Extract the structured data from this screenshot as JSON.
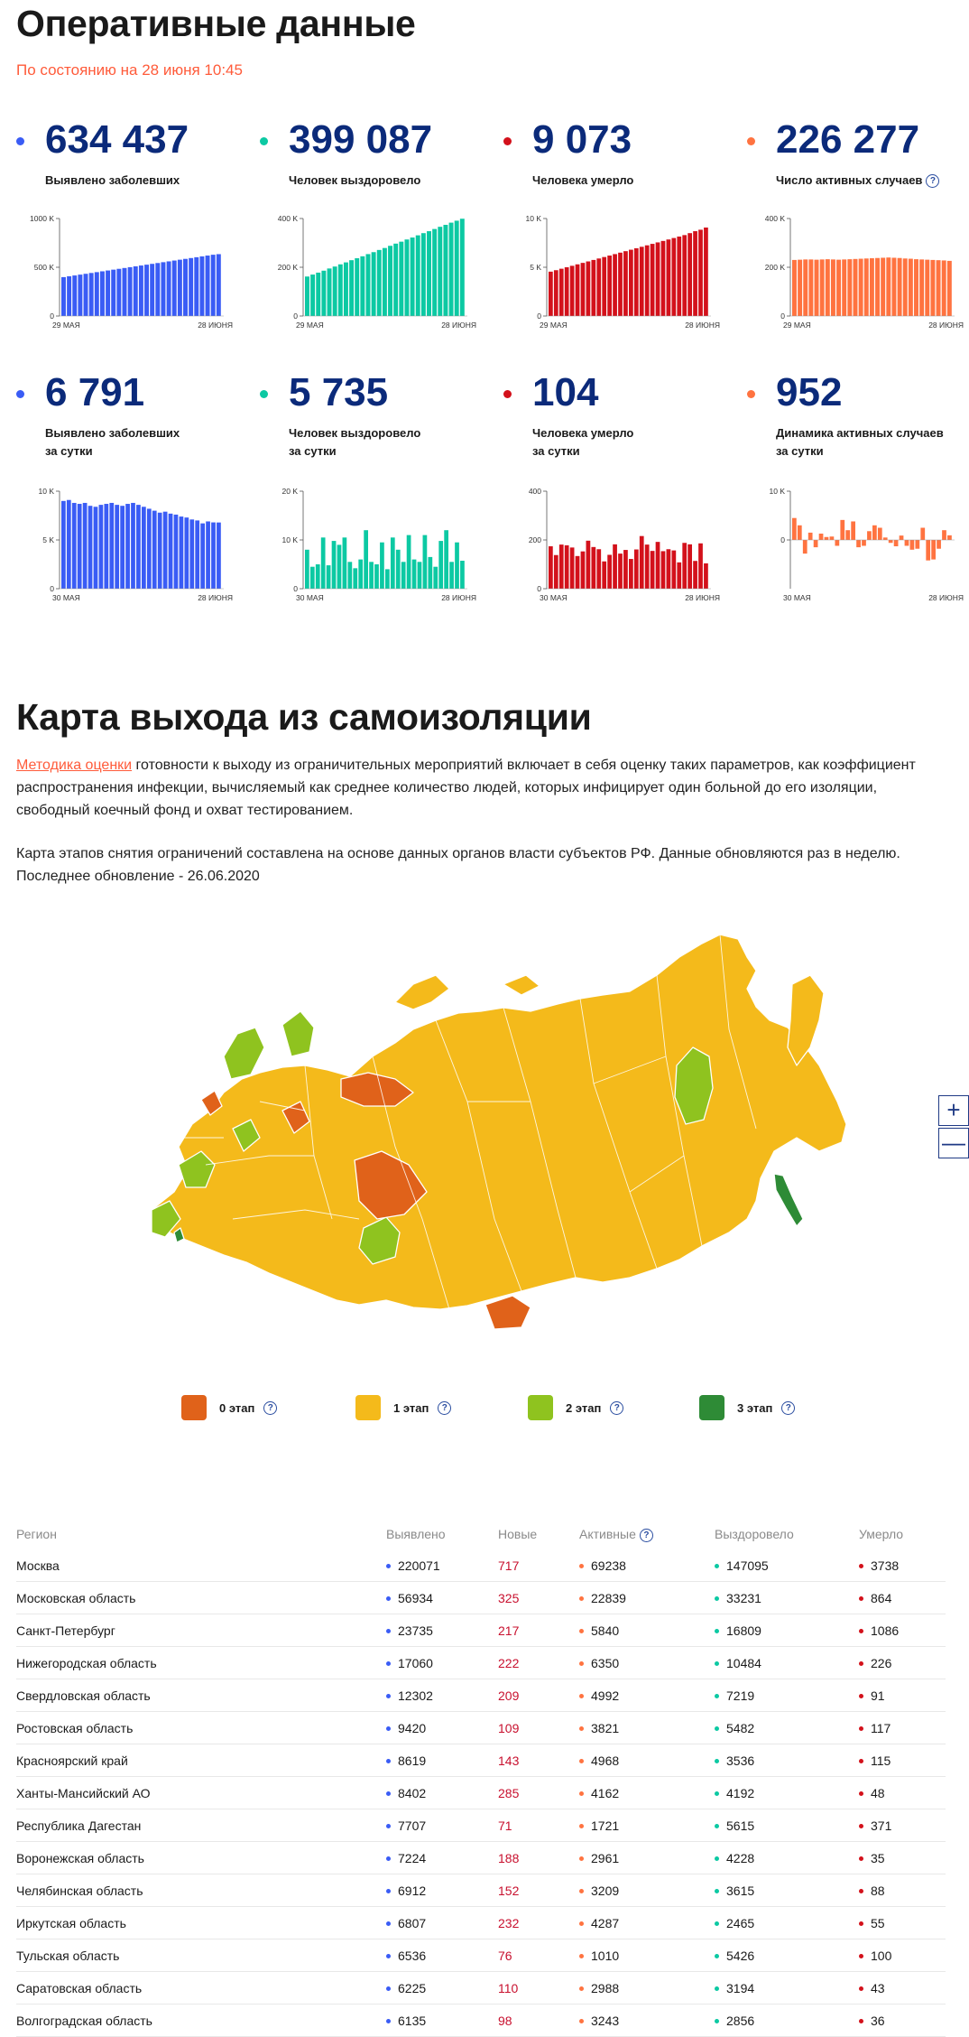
{
  "section1": {
    "title": "Оперативные данные",
    "as_of": "По состоянию на 28 июня 10:45"
  },
  "colors": {
    "blue": "#3a5cf5",
    "teal": "#0cc9a3",
    "red": "#d3111b",
    "orange": "#ff7340"
  },
  "stats_total": [
    {
      "value": "634 437",
      "label": "Выявлено заболевших",
      "color": "#3a5cf5"
    },
    {
      "value": "399 087",
      "label": "Человек выздоровело",
      "color": "#0cc9a3"
    },
    {
      "value": "9 073",
      "label": "Человека умерло",
      "color": "#d3111b"
    },
    {
      "value": "226 277",
      "label": "Число активных случаев",
      "color": "#ff7340",
      "help_icon": "question-icon"
    }
  ],
  "stats_daily": [
    {
      "value": "6 791",
      "label_line1": "Выявлено заболевших",
      "label_line2": "за сутки",
      "color": "#3a5cf5"
    },
    {
      "value": "5 735",
      "label_line1": "Человек выздоровело",
      "label_line2": "за сутки",
      "color": "#0cc9a3"
    },
    {
      "value": "104",
      "label_line1": "Человека умерло",
      "label_line2": "за сутки",
      "color": "#d3111b"
    },
    {
      "value": "952",
      "label_line1": "Динамика активных случаев",
      "label_line2": "за сутки",
      "color": "#ff7340"
    }
  ],
  "chart_data": [
    {
      "type": "bar",
      "color": "#3a5cf5",
      "ylim": [
        0,
        1000000
      ],
      "yticks": [
        "1000 K",
        "500 K",
        "0"
      ],
      "ytick_values": [
        1000000,
        500000,
        0
      ],
      "xticks": [
        "29 МАЯ",
        "28 ИЮНЯ"
      ],
      "values": [
        399000,
        407500,
        416000,
        424500,
        433000,
        441500,
        450000,
        458500,
        467000,
        475500,
        484000,
        492500,
        501000,
        509500,
        518000,
        526500,
        535000,
        543500,
        552000,
        560500,
        569000,
        577500,
        586000,
        594500,
        603000,
        611500,
        620000,
        628500,
        634437
      ]
    },
    {
      "type": "bar",
      "color": "#0cc9a3",
      "ylim": [
        0,
        400000
      ],
      "yticks": [
        "400 K",
        "200 K",
        "0"
      ],
      "ytick_values": [
        400000,
        200000,
        0
      ],
      "xticks": [
        "29 МАЯ",
        "28 ИЮНЯ"
      ],
      "values": [
        162000,
        170000,
        178000,
        186000,
        195000,
        203000,
        212000,
        220000,
        229000,
        237000,
        245000,
        254000,
        262000,
        271000,
        279000,
        288000,
        297000,
        305000,
        314000,
        322000,
        331000,
        340000,
        348000,
        357000,
        366000,
        374000,
        383000,
        391000,
        399087
      ]
    },
    {
      "type": "bar",
      "color": "#d3111b",
      "ylim": [
        0,
        10000
      ],
      "yticks": [
        "10 K",
        "5 K",
        "0"
      ],
      "ytick_values": [
        10000,
        5000,
        0
      ],
      "xticks": [
        "29 МАЯ",
        "28 ИЮНЯ"
      ],
      "values": [
        4550,
        4700,
        4850,
        5000,
        5150,
        5300,
        5450,
        5600,
        5750,
        5900,
        6050,
        6200,
        6350,
        6500,
        6650,
        6800,
        6950,
        7100,
        7250,
        7400,
        7550,
        7700,
        7850,
        8000,
        8150,
        8300,
        8500,
        8700,
        8850,
        9073
      ]
    },
    {
      "type": "bar",
      "color": "#ff7340",
      "ylim": [
        0,
        400000
      ],
      "yticks": [
        "400 K",
        "200 K",
        "0"
      ],
      "ytick_values": [
        400000,
        200000,
        0
      ],
      "xticks": [
        "29 МАЯ",
        "28 ИЮНЯ"
      ],
      "values": [
        230000,
        231000,
        232000,
        232000,
        231000,
        232000,
        233000,
        232000,
        231000,
        232000,
        233000,
        234000,
        235000,
        236000,
        237000,
        238000,
        239000,
        240000,
        239000,
        238000,
        236000,
        235000,
        233000,
        232000,
        231000,
        230000,
        229000,
        228000,
        226277
      ]
    },
    {
      "type": "bar",
      "color": "#3a5cf5",
      "ylim": [
        0,
        10000
      ],
      "yticks": [
        "10 K",
        "5 K",
        "0"
      ],
      "ytick_values": [
        10000,
        5000,
        0
      ],
      "xticks": [
        "30 МАЯ",
        "28 ИЮНЯ"
      ],
      "values": [
        9000,
        9100,
        8800,
        8700,
        8800,
        8500,
        8400,
        8600,
        8700,
        8800,
        8600,
        8500,
        8700,
        8800,
        8600,
        8400,
        8200,
        8000,
        7800,
        7900,
        7700,
        7600,
        7400,
        7300,
        7100,
        7000,
        6700,
        6900,
        6800,
        6791
      ]
    },
    {
      "type": "bar",
      "color": "#0cc9a3",
      "ylim": [
        0,
        20000
      ],
      "yticks": [
        "20 K",
        "10 K",
        "0"
      ],
      "ytick_values": [
        20000,
        10000,
        0
      ],
      "xticks": [
        "30 МАЯ",
        "28 ИЮНЯ"
      ],
      "values": [
        8000,
        4500,
        5000,
        10500,
        4800,
        9800,
        9000,
        10500,
        5500,
        4200,
        6000,
        12000,
        5500,
        5000,
        9500,
        4000,
        10500,
        8000,
        5500,
        11000,
        6000,
        5500,
        11000,
        6500,
        4500,
        9800,
        12000,
        5500,
        9500,
        5735
      ]
    },
    {
      "type": "bar",
      "color": "#d3111b",
      "ylim": [
        0,
        400
      ],
      "yticks": [
        "400",
        "200",
        "0"
      ],
      "ytick_values": [
        400,
        200,
        0
      ],
      "xticks": [
        "30 МАЯ",
        "28 ИЮНЯ"
      ],
      "values": [
        174,
        138,
        181,
        178,
        169,
        134,
        153,
        197,
        171,
        162,
        112,
        139,
        182,
        144,
        159,
        122,
        161,
        216,
        181,
        155,
        192,
        154,
        162,
        157,
        108,
        188,
        182,
        114,
        186,
        104
      ]
    },
    {
      "type": "bar",
      "color": "#ff7340",
      "ylim": [
        -10000,
        10000
      ],
      "yticks": [
        "10 K",
        "0"
      ],
      "ytick_values": [
        10000,
        0
      ],
      "xticks": [
        "30 МАЯ",
        "28 ИЮНЯ"
      ],
      "values": [
        4500,
        3000,
        -2800,
        1500,
        -1500,
        1300,
        600,
        700,
        -1200,
        4100,
        2000,
        3800,
        -1500,
        -1200,
        1800,
        3000,
        2500,
        500,
        -600,
        -1300,
        900,
        -1200,
        -2000,
        -1800,
        2500,
        -4200,
        -4000,
        -1800,
        2000,
        952
      ]
    }
  ],
  "section2": {
    "title": "Карта выхода из самоизоляции",
    "link": "Методика оценки",
    "p1": " готовности к выходу из ограничительных мероприятий включает в себя оценку таких параметров, как коэффициент распространения инфекции, вычисляемый как среднее количество людей, которых инфицирует один больной до его изоляции, свободный коечный фонд и охват тестированием.",
    "p2_line1": "Карта этапов снятия ограничений составлена на основе данных органов власти субъектов РФ. Данные обновляются раз в неделю.",
    "p2_line2": "Последнее обновление - 26.06.2020"
  },
  "map": {
    "zoom_in": "+",
    "zoom_out": "—",
    "legend": [
      {
        "label": "0 этап",
        "color": "#e0621a"
      },
      {
        "label": "1 этап",
        "color": "#f4ba1b"
      },
      {
        "label": "2 этап",
        "color": "#8fc31f"
      },
      {
        "label": "3 этап",
        "color": "#2e8b36"
      }
    ]
  },
  "table": {
    "headers": [
      "Регион",
      "Выявлено",
      "Новые",
      "Активные",
      "Выздоровело",
      "Умерло"
    ],
    "rows": [
      [
        "Москва",
        "220071",
        "717",
        "69238",
        "147095",
        "3738"
      ],
      [
        "Московская область",
        "56934",
        "325",
        "22839",
        "33231",
        "864"
      ],
      [
        "Санкт-Петербург",
        "23735",
        "217",
        "5840",
        "16809",
        "1086"
      ],
      [
        "Нижегородская область",
        "17060",
        "222",
        "6350",
        "10484",
        "226"
      ],
      [
        "Свердловская область",
        "12302",
        "209",
        "4992",
        "7219",
        "91"
      ],
      [
        "Ростовская область",
        "9420",
        "109",
        "3821",
        "5482",
        "117"
      ],
      [
        "Красноярский край",
        "8619",
        "143",
        "4968",
        "3536",
        "115"
      ],
      [
        "Ханты-Мансийский АО",
        "8402",
        "285",
        "4162",
        "4192",
        "48"
      ],
      [
        "Республика Дагестан",
        "7707",
        "71",
        "1721",
        "5615",
        "371"
      ],
      [
        "Воронежская область",
        "7224",
        "188",
        "2961",
        "4228",
        "35"
      ],
      [
        "Челябинская область",
        "6912",
        "152",
        "3209",
        "3615",
        "88"
      ],
      [
        "Иркутская область",
        "6807",
        "232",
        "4287",
        "2465",
        "55"
      ],
      [
        "Тульская область",
        "6536",
        "76",
        "1010",
        "5426",
        "100"
      ],
      [
        "Саратовская область",
        "6225",
        "110",
        "2988",
        "3194",
        "43"
      ],
      [
        "Волгоградская область",
        "6135",
        "98",
        "3243",
        "2856",
        "36"
      ]
    ]
  }
}
